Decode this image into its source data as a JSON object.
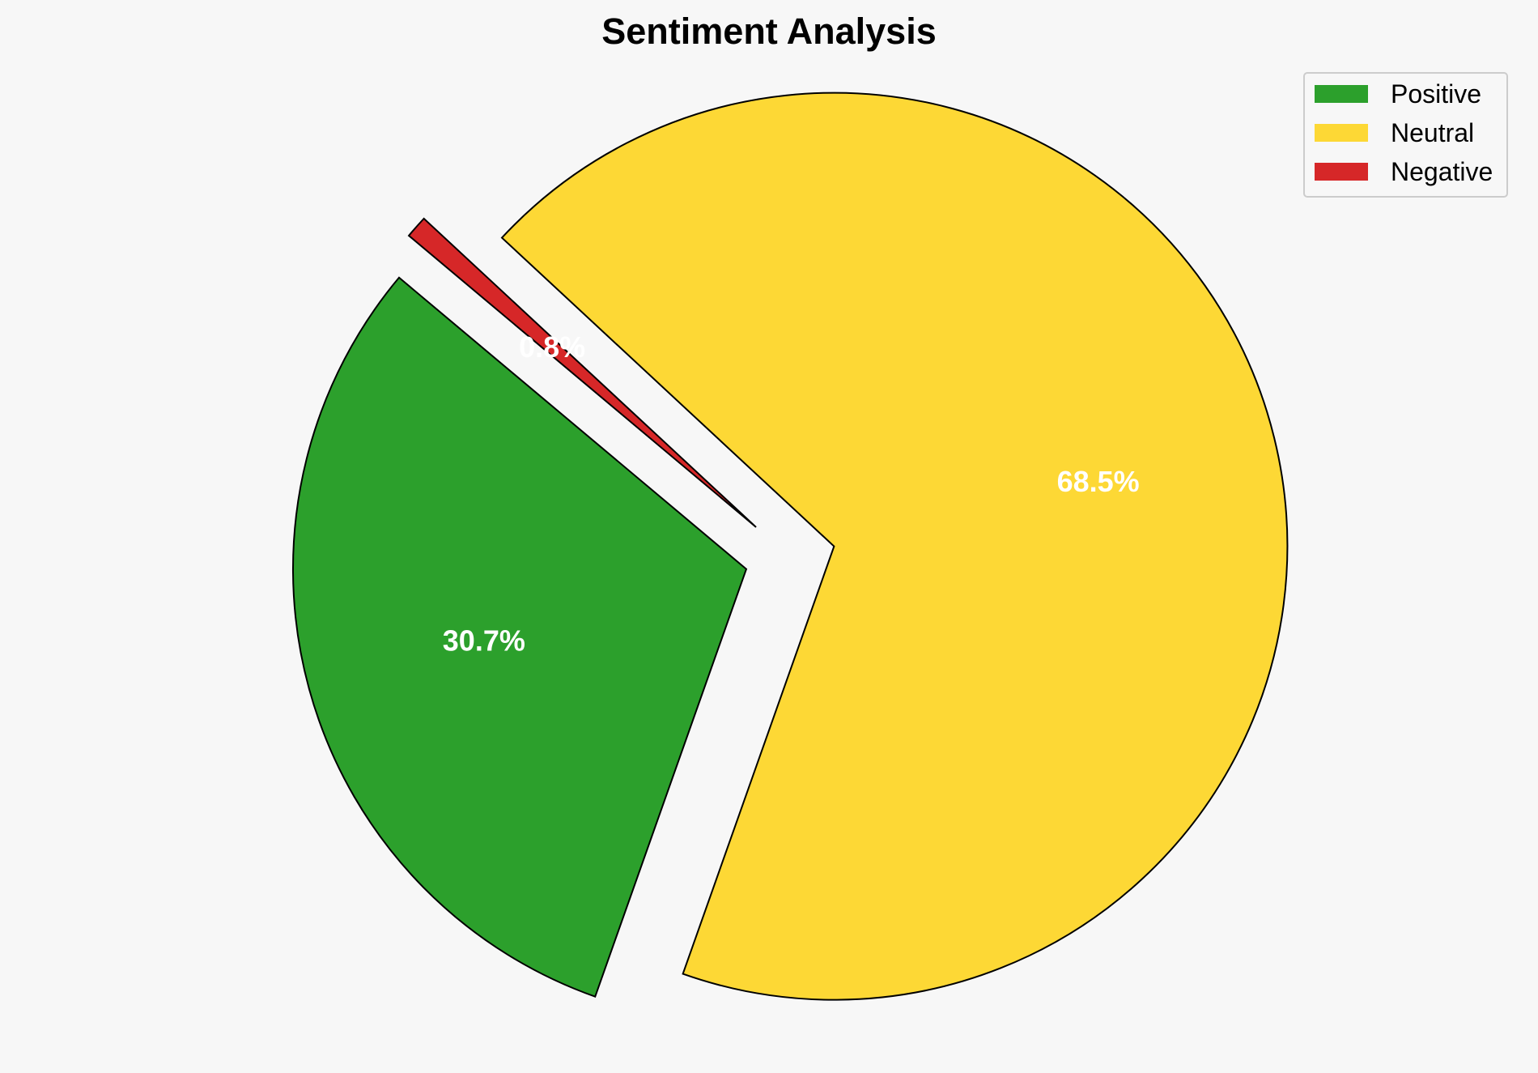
{
  "chart_data": {
    "type": "pie",
    "title": "Sentiment Analysis",
    "slices": [
      {
        "label": "Positive",
        "value": 30.7,
        "display": "30.7%",
        "color": "#2ca02c",
        "exploded": true
      },
      {
        "label": "Neutral",
        "value": 68.5,
        "display": "68.5%",
        "color": "#fdd835",
        "exploded": true
      },
      {
        "label": "Negative",
        "value": 0.8,
        "display": "0.8%",
        "color": "#d62728",
        "exploded": true
      }
    ],
    "start_angle_deg": 140,
    "direction": "counterclockwise",
    "legend": {
      "position": "top-right",
      "entries": [
        "Positive",
        "Neutral",
        "Negative"
      ]
    }
  }
}
